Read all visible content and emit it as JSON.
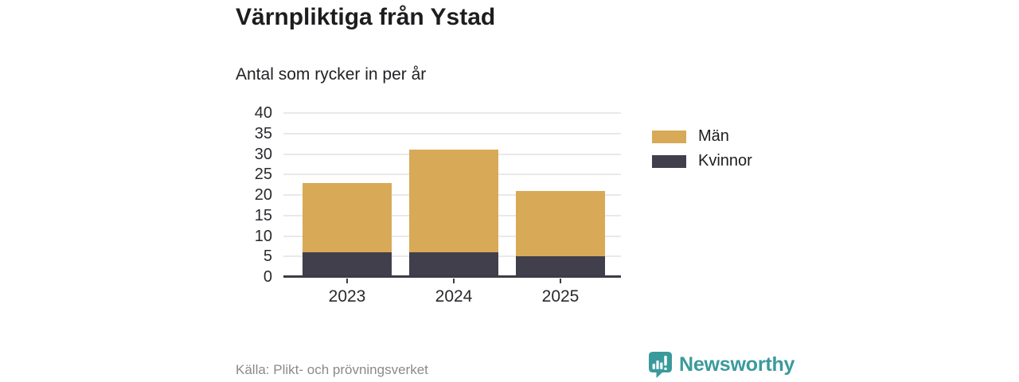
{
  "header": {
    "title": "Värnpliktiga från Ystad",
    "subtitle": "Antal som rycker in per år"
  },
  "chart_data": {
    "type": "bar",
    "stacked": true,
    "categories": [
      "2023",
      "2024",
      "2025"
    ],
    "series": [
      {
        "name": "Män",
        "color": "#d8a957",
        "values": [
          17,
          25,
          16
        ]
      },
      {
        "name": "Kvinnor",
        "color": "#413f4c",
        "values": [
          6,
          6,
          5
        ]
      }
    ],
    "stack_totals": [
      23,
      31,
      21
    ],
    "title": "Värnpliktiga från Ystad",
    "subtitle": "Antal som rycker in per år",
    "xlabel": "",
    "ylabel": "",
    "ylim": [
      0,
      40
    ],
    "yticks": [
      0,
      5,
      10,
      15,
      20,
      25,
      30,
      35,
      40
    ],
    "grid": true,
    "legend_position": "right",
    "stack_order_bottom_to_top": [
      "Kvinnor",
      "Män"
    ]
  },
  "footer": {
    "source": "Källa: Plikt- och prövningsverket",
    "brand": "Newsworthy"
  },
  "colors": {
    "bar_gold": "#d8a957",
    "bar_dark": "#413f4c",
    "brand_teal": "#3a9a9b",
    "gridline": "#e9e9e9",
    "axis": "#3d3c46",
    "text": "#1d1d20",
    "muted_text": "#8a8a8a"
  },
  "icons": {
    "brand_logo": "newsworthy-speech-bubble-bar-chart-icon"
  }
}
